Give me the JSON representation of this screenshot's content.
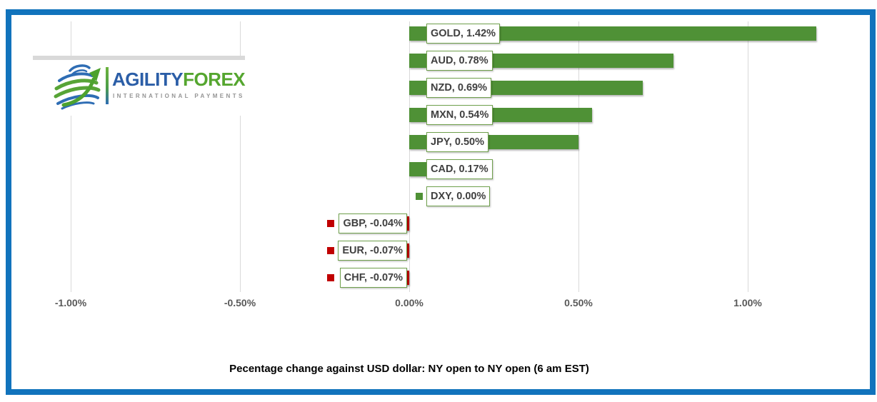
{
  "frame": {
    "border_color": "#1173BC"
  },
  "logo": {
    "brand_agility": "AGILITY",
    "brand_forex": "FOREX",
    "tagline": "INTERNATIONAL PAYMENTS",
    "agility_color": "#2B5EA7",
    "forex_color": "#55A62F"
  },
  "chart_data": {
    "type": "bar",
    "orientation": "horizontal",
    "title": "Pecentage change against USD dollar: NY open to NY open  (6 am EST)",
    "categories": [
      "GOLD",
      "AUD",
      "NZD",
      "MXN",
      "JPY",
      "CAD",
      "DXY",
      "GBP",
      "EUR",
      "CHF"
    ],
    "values": [
      1.42,
      0.78,
      0.69,
      0.54,
      0.5,
      0.17,
      0.0,
      -0.04,
      -0.07,
      -0.07
    ],
    "labels": [
      "GOLD, 1.42%",
      "AUD, 0.78%",
      "NZD, 0.69%",
      "MXN, 0.54%",
      "JPY, 0.50%",
      "CAD, 0.17%",
      "DXY, 0.00%",
      "GBP, -0.04%",
      "EUR, -0.07%",
      "CHF, -0.07%"
    ],
    "x_ticks": [
      "-1.00%",
      "-0.50%",
      "0.00%",
      "0.50%",
      "1.00%"
    ],
    "x_tick_values": [
      -1.0,
      -0.5,
      0.0,
      0.5,
      1.0
    ],
    "xlim": [
      -1.2,
      1.2
    ],
    "grid": true,
    "legend_position": "none",
    "positive_color": "#4F9136",
    "negative_color": "#C00000",
    "gridline_color": "#D9D9D9",
    "label_border_color": "#6FA04C",
    "label_text_color": "#404040",
    "tick_text_color": "#595959"
  }
}
